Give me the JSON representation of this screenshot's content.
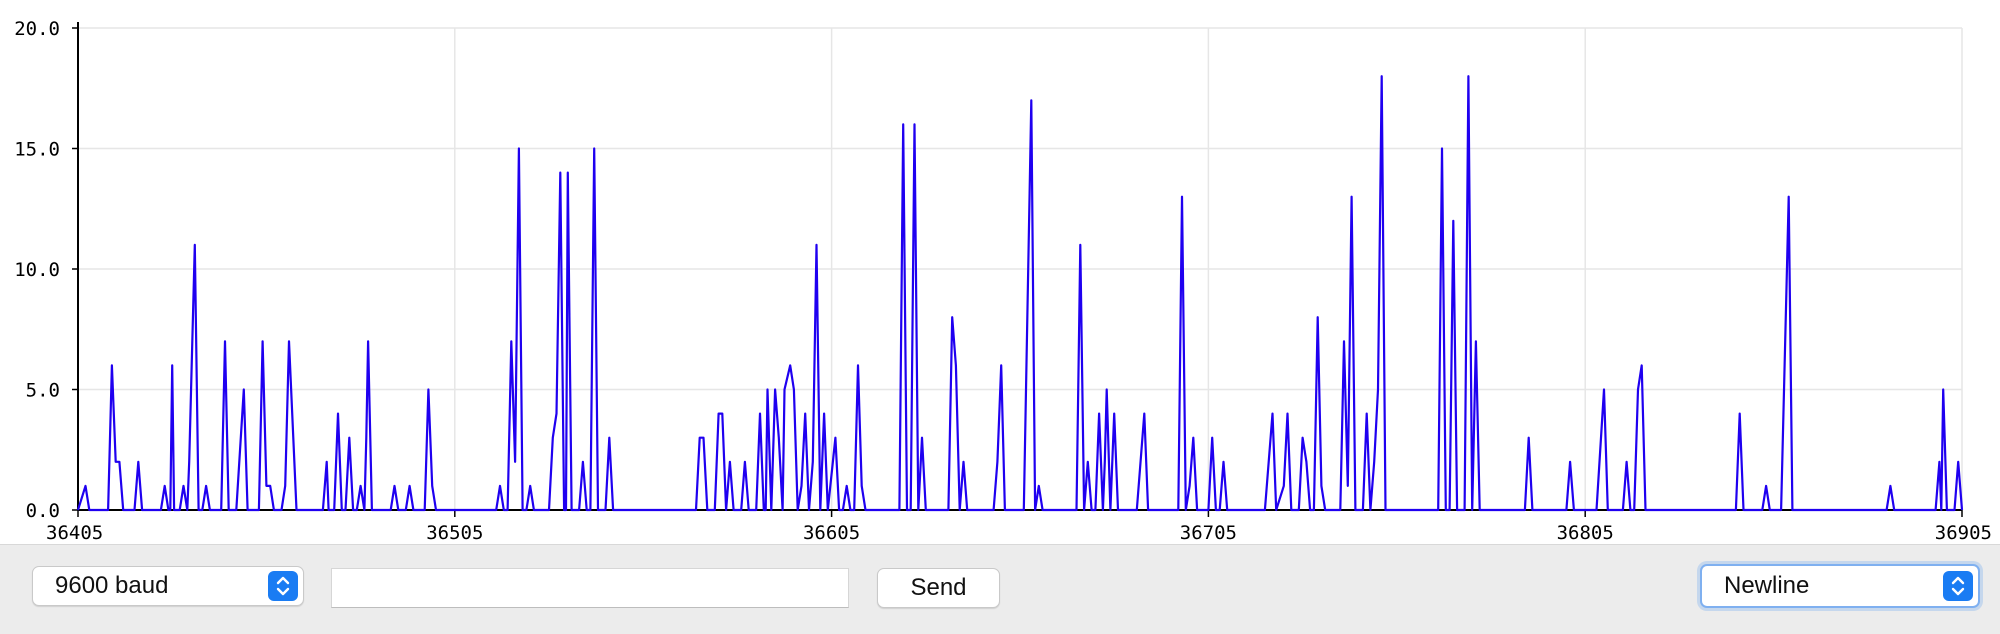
{
  "chart_data": {
    "type": "line",
    "x_ticks": [
      "36405",
      "36505",
      "36605",
      "36705",
      "36805",
      "36905"
    ],
    "y_ticks": [
      "0.0",
      "5.0",
      "10.0",
      "15.0",
      "20.0"
    ],
    "xlim": [
      36405,
      36905
    ],
    "ylim": [
      0,
      20
    ],
    "grid": true,
    "line_color": "#1f00f0",
    "points": [
      [
        36405,
        0
      ],
      [
        36407,
        1
      ],
      [
        36408,
        0
      ],
      [
        36413,
        0
      ],
      [
        36414,
        6
      ],
      [
        36415,
        2
      ],
      [
        36416,
        2
      ],
      [
        36417,
        0
      ],
      [
        36420,
        0
      ],
      [
        36421,
        2
      ],
      [
        36422,
        0
      ],
      [
        36427,
        0
      ],
      [
        36428,
        1
      ],
      [
        36429,
        0
      ],
      [
        36429.5,
        0
      ],
      [
        36430,
        6
      ],
      [
        36430.5,
        0
      ],
      [
        36432,
        0
      ],
      [
        36433,
        1
      ],
      [
        36434,
        0
      ],
      [
        36434.5,
        2
      ],
      [
        36436,
        11
      ],
      [
        36437,
        0
      ],
      [
        36438,
        0
      ],
      [
        36439,
        1
      ],
      [
        36440,
        0
      ],
      [
        36443,
        0
      ],
      [
        36444,
        7
      ],
      [
        36445,
        0
      ],
      [
        36447,
        0
      ],
      [
        36449,
        5
      ],
      [
        36450,
        0
      ],
      [
        36453,
        0
      ],
      [
        36454,
        7
      ],
      [
        36455,
        1
      ],
      [
        36456,
        1
      ],
      [
        36457,
        0
      ],
      [
        36459,
        0
      ],
      [
        36460,
        1
      ],
      [
        36461,
        7
      ],
      [
        36463,
        0
      ],
      [
        36470,
        0
      ],
      [
        36471,
        2
      ],
      [
        36471.5,
        0
      ],
      [
        36473,
        0
      ],
      [
        36474,
        4
      ],
      [
        36475,
        0
      ],
      [
        36476,
        0
      ],
      [
        36477,
        3
      ],
      [
        36478,
        0
      ],
      [
        36479,
        0
      ],
      [
        36480,
        1
      ],
      [
        36481,
        0
      ],
      [
        36481.5,
        3
      ],
      [
        36482,
        7
      ],
      [
        36483,
        0
      ],
      [
        36488,
        0
      ],
      [
        36489,
        1
      ],
      [
        36490,
        0
      ],
      [
        36492,
        0
      ],
      [
        36493,
        1
      ],
      [
        36494,
        0
      ],
      [
        36497,
        0
      ],
      [
        36498,
        5
      ],
      [
        36499,
        1
      ],
      [
        36500,
        0
      ],
      [
        36516,
        0
      ],
      [
        36517,
        1
      ],
      [
        36518,
        0
      ],
      [
        36519,
        0
      ],
      [
        36520,
        7
      ],
      [
        36521,
        2
      ],
      [
        36522,
        15
      ],
      [
        36523,
        0
      ],
      [
        36524,
        0
      ],
      [
        36525,
        1
      ],
      [
        36526,
        0
      ],
      [
        36530,
        0
      ],
      [
        36531,
        3
      ],
      [
        36532,
        4
      ],
      [
        36533,
        14
      ],
      [
        36534,
        0
      ],
      [
        36534.5,
        0
      ],
      [
        36535,
        14
      ],
      [
        36536,
        0
      ],
      [
        36538,
        0
      ],
      [
        36539,
        2
      ],
      [
        36540,
        0
      ],
      [
        36541,
        0
      ],
      [
        36542,
        15
      ],
      [
        36543,
        0
      ],
      [
        36545,
        0
      ],
      [
        36546,
        3
      ],
      [
        36547,
        0
      ],
      [
        36569,
        0
      ],
      [
        36570,
        3
      ],
      [
        36571,
        3
      ],
      [
        36572,
        0
      ],
      [
        36574,
        0
      ],
      [
        36575,
        4
      ],
      [
        36576,
        4
      ],
      [
        36577,
        0
      ],
      [
        36578,
        2
      ],
      [
        36579,
        0
      ],
      [
        36581,
        0
      ],
      [
        36582,
        2
      ],
      [
        36583,
        0
      ],
      [
        36585,
        0
      ],
      [
        36586,
        4
      ],
      [
        36587,
        0
      ],
      [
        36587.5,
        0
      ],
      [
        36588,
        5
      ],
      [
        36589,
        0
      ],
      [
        36590,
        5
      ],
      [
        36591,
        3
      ],
      [
        36592,
        0
      ],
      [
        36592.5,
        5
      ],
      [
        36594,
        6
      ],
      [
        36595,
        5
      ],
      [
        36596,
        0
      ],
      [
        36597,
        1
      ],
      [
        36598,
        4
      ],
      [
        36599,
        0
      ],
      [
        36600,
        2
      ],
      [
        36601,
        11
      ],
      [
        36602,
        0
      ],
      [
        36603,
        4
      ],
      [
        36604,
        0
      ],
      [
        36606,
        3
      ],
      [
        36607,
        0
      ],
      [
        36608,
        0
      ],
      [
        36609,
        1
      ],
      [
        36610,
        0
      ],
      [
        36611,
        0
      ],
      [
        36612,
        6
      ],
      [
        36613,
        1
      ],
      [
        36614,
        0
      ],
      [
        36616,
        0
      ],
      [
        36617,
        0
      ],
      [
        36618,
        0
      ],
      [
        36623,
        0
      ],
      [
        36624,
        16
      ],
      [
        36625,
        0
      ],
      [
        36626,
        0
      ],
      [
        36627,
        16
      ],
      [
        36628,
        0
      ],
      [
        36629,
        3
      ],
      [
        36630,
        0
      ],
      [
        36636,
        0
      ],
      [
        36637,
        8
      ],
      [
        36638,
        6
      ],
      [
        36639,
        0
      ],
      [
        36640,
        2
      ],
      [
        36641,
        0
      ],
      [
        36648,
        0
      ],
      [
        36649,
        2
      ],
      [
        36650,
        6
      ],
      [
        36651,
        0
      ],
      [
        36656,
        0
      ],
      [
        36658,
        17
      ],
      [
        36659,
        0
      ],
      [
        36660,
        1
      ],
      [
        36661,
        0
      ],
      [
        36670,
        0
      ],
      [
        36671,
        11
      ],
      [
        36672,
        0
      ],
      [
        36673,
        2
      ],
      [
        36674,
        0
      ],
      [
        36675,
        0
      ],
      [
        36676,
        4
      ],
      [
        36677,
        0
      ],
      [
        36677.5,
        2
      ],
      [
        36678,
        5
      ],
      [
        36679,
        0
      ],
      [
        36680,
        4
      ],
      [
        36681,
        0
      ],
      [
        36686,
        0
      ],
      [
        36688,
        4
      ],
      [
        36689,
        0
      ],
      [
        36697,
        0
      ],
      [
        36698,
        13
      ],
      [
        36699,
        0
      ],
      [
        36700,
        1
      ],
      [
        36701,
        3
      ],
      [
        36702,
        0
      ],
      [
        36705,
        0
      ],
      [
        36706,
        3
      ],
      [
        36707,
        0
      ],
      [
        36708,
        0
      ],
      [
        36709,
        2
      ],
      [
        36710,
        0
      ],
      [
        36720,
        0
      ],
      [
        36722,
        4
      ],
      [
        36723,
        0
      ],
      [
        36725,
        1
      ],
      [
        36726,
        4
      ],
      [
        36727,
        0
      ],
      [
        36729,
        0
      ],
      [
        36730,
        3
      ],
      [
        36731,
        2
      ],
      [
        36732,
        0
      ],
      [
        36733,
        0
      ],
      [
        36734,
        8
      ],
      [
        36735,
        1
      ],
      [
        36736,
        0
      ],
      [
        36740,
        0
      ],
      [
        36741,
        7
      ],
      [
        36742,
        1
      ],
      [
        36743,
        13
      ],
      [
        36744,
        0
      ],
      [
        36746,
        0
      ],
      [
        36747,
        4
      ],
      [
        36748,
        0
      ],
      [
        36749,
        2
      ],
      [
        36750,
        5
      ],
      [
        36751,
        18
      ],
      [
        36752,
        0
      ],
      [
        36766,
        0
      ],
      [
        36767,
        15
      ],
      [
        36768,
        0
      ],
      [
        36769,
        0
      ],
      [
        36770,
        12
      ],
      [
        36771,
        0
      ],
      [
        36773,
        0
      ],
      [
        36774,
        18
      ],
      [
        36775,
        0
      ],
      [
        36776,
        7
      ],
      [
        36777,
        0
      ],
      [
        36789,
        0
      ],
      [
        36790,
        3
      ],
      [
        36791,
        0
      ],
      [
        36800,
        0
      ],
      [
        36801,
        2
      ],
      [
        36802,
        0
      ],
      [
        36808,
        0
      ],
      [
        36810,
        5
      ],
      [
        36811,
        0
      ],
      [
        36815,
        0
      ],
      [
        36816,
        2
      ],
      [
        36817,
        0
      ],
      [
        36818,
        0
      ],
      [
        36819,
        5
      ],
      [
        36820,
        6
      ],
      [
        36821,
        0
      ],
      [
        36845,
        0
      ],
      [
        36846,
        4
      ],
      [
        36847,
        0
      ],
      [
        36852,
        0
      ],
      [
        36853,
        1
      ],
      [
        36854,
        0
      ],
      [
        36857,
        0
      ],
      [
        36859,
        13
      ],
      [
        36860,
        0
      ],
      [
        36885,
        0
      ],
      [
        36886,
        1
      ],
      [
        36887,
        0
      ],
      [
        36898,
        0
      ],
      [
        36899,
        2
      ],
      [
        36899.5,
        0
      ],
      [
        36900,
        5
      ],
      [
        36901,
        0
      ],
      [
        36903,
        0
      ],
      [
        36904,
        2
      ],
      [
        36905,
        0
      ]
    ]
  },
  "controls": {
    "baud_select": {
      "selected": "9600 baud",
      "icon": "stepper-icon"
    },
    "message_input": {
      "value": "",
      "placeholder": ""
    },
    "send_button": {
      "label": "Send"
    },
    "line_ending_select": {
      "selected": "Newline",
      "icon": "stepper-icon"
    }
  },
  "colors": {
    "accent": "#1a7cf3",
    "plot_line": "#1f00f0",
    "toolbar_bg": "#ececec"
  }
}
